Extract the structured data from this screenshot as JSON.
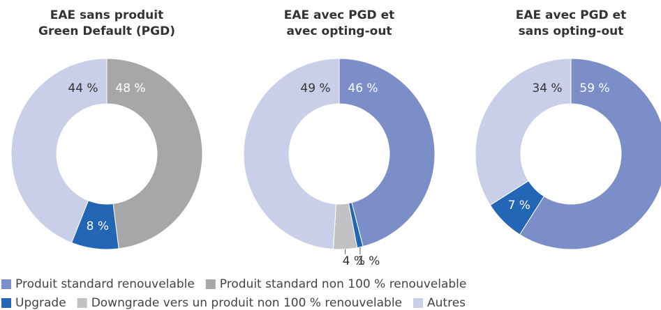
{
  "chart_data": [
    {
      "type": "donut",
      "title": [
        "EAE sans produit",
        "Green Default (PGD)"
      ],
      "categories": [
        "Produit standard non 100 % renouvelable",
        "Upgrade",
        "Autres"
      ],
      "values": [
        48,
        8,
        44
      ],
      "value_labels": [
        "48 %",
        "8 %",
        "44 %"
      ],
      "colors": [
        "#a7a7a9",
        "#2466b6",
        "#c9cfe8"
      ]
    },
    {
      "type": "donut",
      "title": [
        "EAE avec PGD et",
        "avec opting-out"
      ],
      "categories": [
        "Produit standard renouvelable",
        "Upgrade",
        "Downgrade vers un produit non 100 % renouvelable",
        "Autres"
      ],
      "values": [
        46,
        1,
        4,
        49
      ],
      "value_labels": [
        "46 %",
        "1 %",
        "4 %",
        "49 %"
      ],
      "colors": [
        "#7b8ec8",
        "#2466b6",
        "#c2c2c4",
        "#c9cfe8"
      ]
    },
    {
      "type": "donut",
      "title": [
        "EAE avec PGD et",
        "sans opting-out"
      ],
      "categories": [
        "Produit standard renouvelable",
        "Upgrade",
        "Autres"
      ],
      "values": [
        59,
        7,
        34
      ],
      "value_labels": [
        "59 %",
        "7 %",
        "34 %"
      ],
      "colors": [
        "#7b8ec8",
        "#2466b6",
        "#c9cfe8"
      ]
    }
  ],
  "legend": [
    {
      "name": "Produit standard renouvelable",
      "color": "#7b8ec8"
    },
    {
      "name": "Produit standard non 100 % renouvelable",
      "color": "#a7a7a9"
    },
    {
      "name": "Upgrade",
      "color": "#2466b6"
    },
    {
      "name": "Downgrade vers un produit non 100 % renouvelable",
      "color": "#c2c2c4"
    },
    {
      "name": "Autres",
      "color": "#c9cfe8"
    }
  ]
}
